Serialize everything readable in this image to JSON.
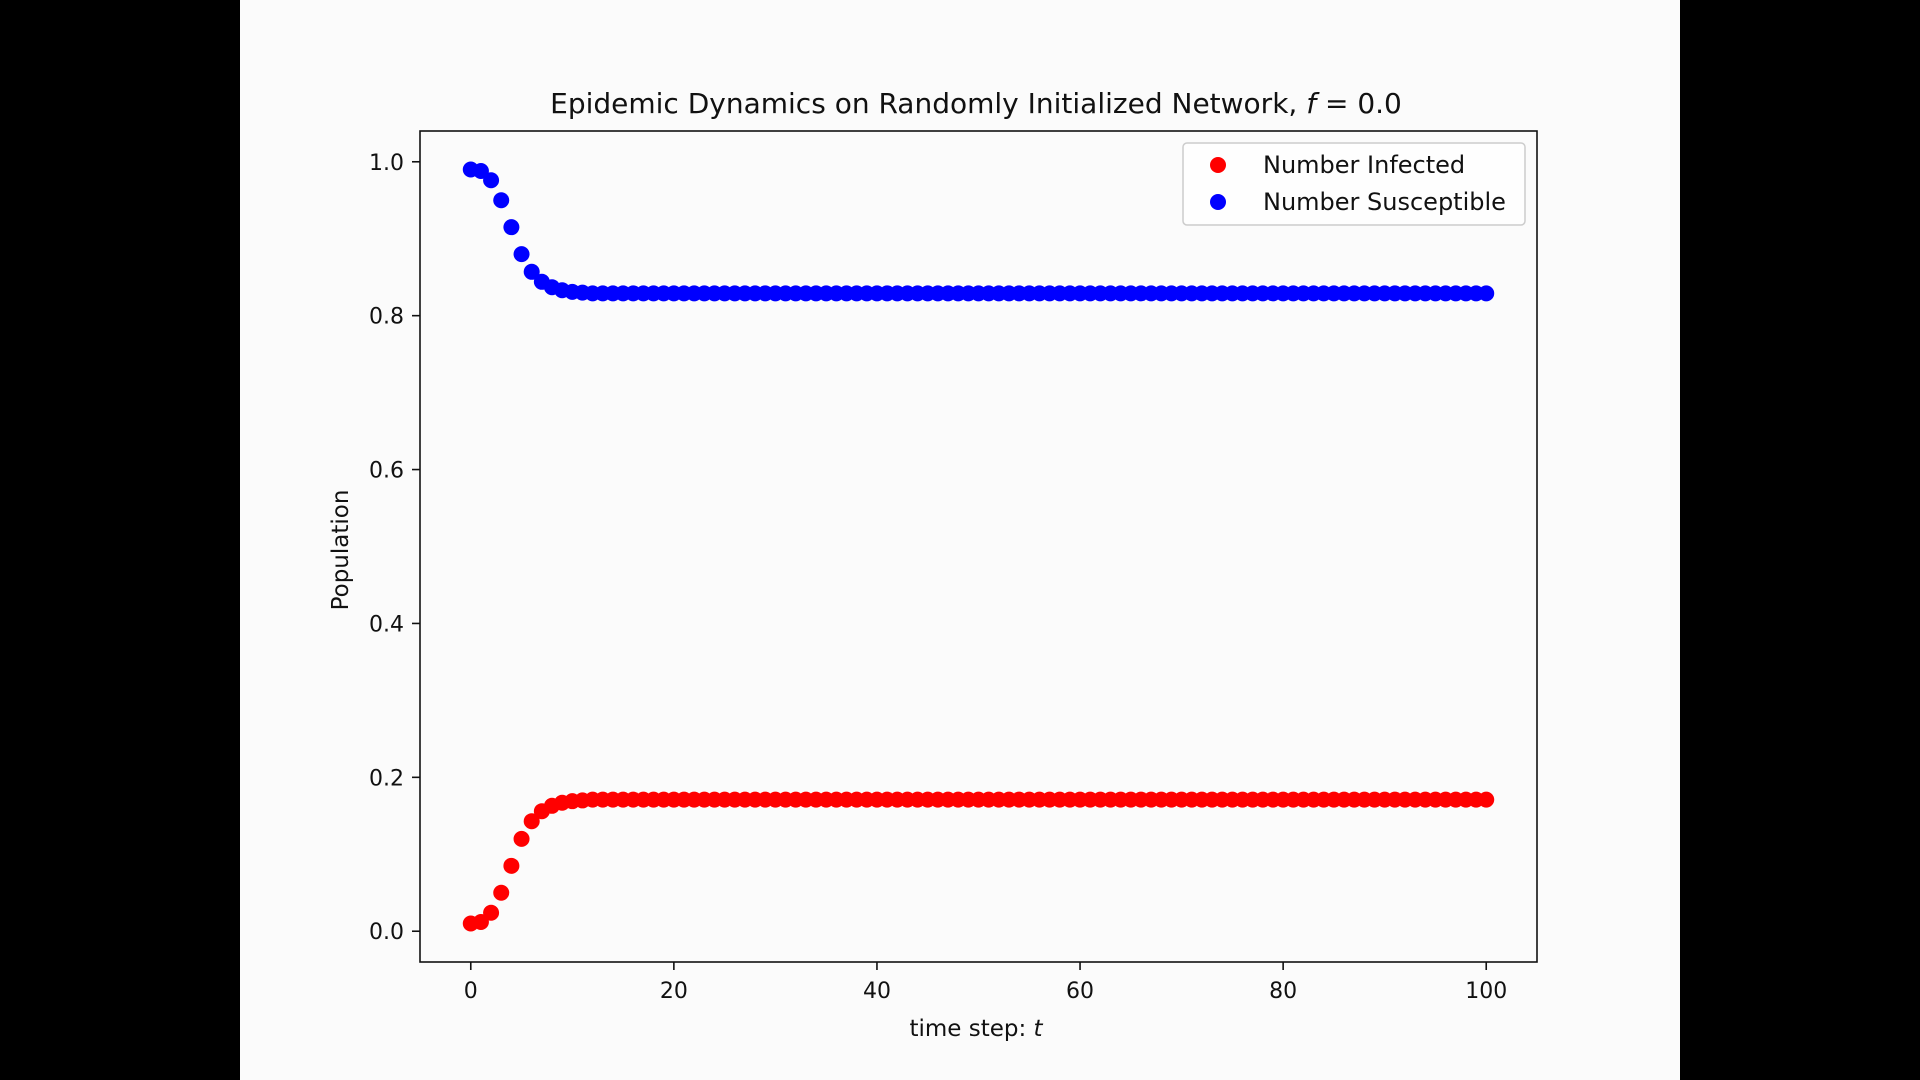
{
  "chart_data": {
    "type": "scatter",
    "title": {
      "text": "Epidemic Dynamics on Randomly Initialized Network, ",
      "var": "f",
      "rest": " = 0.0"
    },
    "xlabel": {
      "text": "time step: ",
      "var": "t"
    },
    "ylabel": "Population",
    "xlim": [
      -5,
      105
    ],
    "ylim": [
      -0.04,
      1.04
    ],
    "xticks": [
      0,
      20,
      40,
      60,
      80,
      100
    ],
    "xtick_labels": [
      "0",
      "20",
      "40",
      "60",
      "80",
      "100"
    ],
    "yticks": [
      0.0,
      0.2,
      0.4,
      0.6,
      0.8,
      1.0
    ],
    "ytick_labels": [
      "0.0",
      "0.2",
      "0.4",
      "0.6",
      "0.8",
      "1.0"
    ],
    "grid": false,
    "legend_position": "top-right",
    "series": [
      {
        "name": "Number Infected",
        "color": "#ff0000",
        "x_start": 0,
        "x_step": 1,
        "values": [
          0.01,
          0.012,
          0.024,
          0.05,
          0.085,
          0.12,
          0.143,
          0.156,
          0.163,
          0.167,
          0.169,
          0.17,
          0.171,
          0.171,
          0.171,
          0.171,
          0.171,
          0.171,
          0.171,
          0.171,
          0.171,
          0.171,
          0.171,
          0.171,
          0.171,
          0.171,
          0.171,
          0.171,
          0.171,
          0.171,
          0.171,
          0.171,
          0.171,
          0.171,
          0.171,
          0.171,
          0.171,
          0.171,
          0.171,
          0.171,
          0.171,
          0.171,
          0.171,
          0.171,
          0.171,
          0.171,
          0.171,
          0.171,
          0.171,
          0.171,
          0.171,
          0.171,
          0.171,
          0.171,
          0.171,
          0.171,
          0.171,
          0.171,
          0.171,
          0.171,
          0.171,
          0.171,
          0.171,
          0.171,
          0.171,
          0.171,
          0.171,
          0.171,
          0.171,
          0.171,
          0.171,
          0.171,
          0.171,
          0.171,
          0.171,
          0.171,
          0.171,
          0.171,
          0.171,
          0.171,
          0.171,
          0.171,
          0.171,
          0.171,
          0.171,
          0.171,
          0.171,
          0.171,
          0.171,
          0.171,
          0.171,
          0.171,
          0.171,
          0.171,
          0.171,
          0.171,
          0.171,
          0.171,
          0.171,
          0.171,
          0.171
        ]
      },
      {
        "name": "Number Susceptible",
        "color": "#0000ff",
        "x_start": 0,
        "x_step": 1,
        "values": [
          0.99,
          0.988,
          0.976,
          0.95,
          0.915,
          0.88,
          0.857,
          0.844,
          0.837,
          0.833,
          0.831,
          0.83,
          0.829,
          0.829,
          0.829,
          0.829,
          0.829,
          0.829,
          0.829,
          0.829,
          0.829,
          0.829,
          0.829,
          0.829,
          0.829,
          0.829,
          0.829,
          0.829,
          0.829,
          0.829,
          0.829,
          0.829,
          0.829,
          0.829,
          0.829,
          0.829,
          0.829,
          0.829,
          0.829,
          0.829,
          0.829,
          0.829,
          0.829,
          0.829,
          0.829,
          0.829,
          0.829,
          0.829,
          0.829,
          0.829,
          0.829,
          0.829,
          0.829,
          0.829,
          0.829,
          0.829,
          0.829,
          0.829,
          0.829,
          0.829,
          0.829,
          0.829,
          0.829,
          0.829,
          0.829,
          0.829,
          0.829,
          0.829,
          0.829,
          0.829,
          0.829,
          0.829,
          0.829,
          0.829,
          0.829,
          0.829,
          0.829,
          0.829,
          0.829,
          0.829,
          0.829,
          0.829,
          0.829,
          0.829,
          0.829,
          0.829,
          0.829,
          0.829,
          0.829,
          0.829,
          0.829,
          0.829,
          0.829,
          0.829,
          0.829,
          0.829,
          0.829,
          0.829,
          0.829,
          0.829,
          0.829
        ]
      }
    ]
  }
}
